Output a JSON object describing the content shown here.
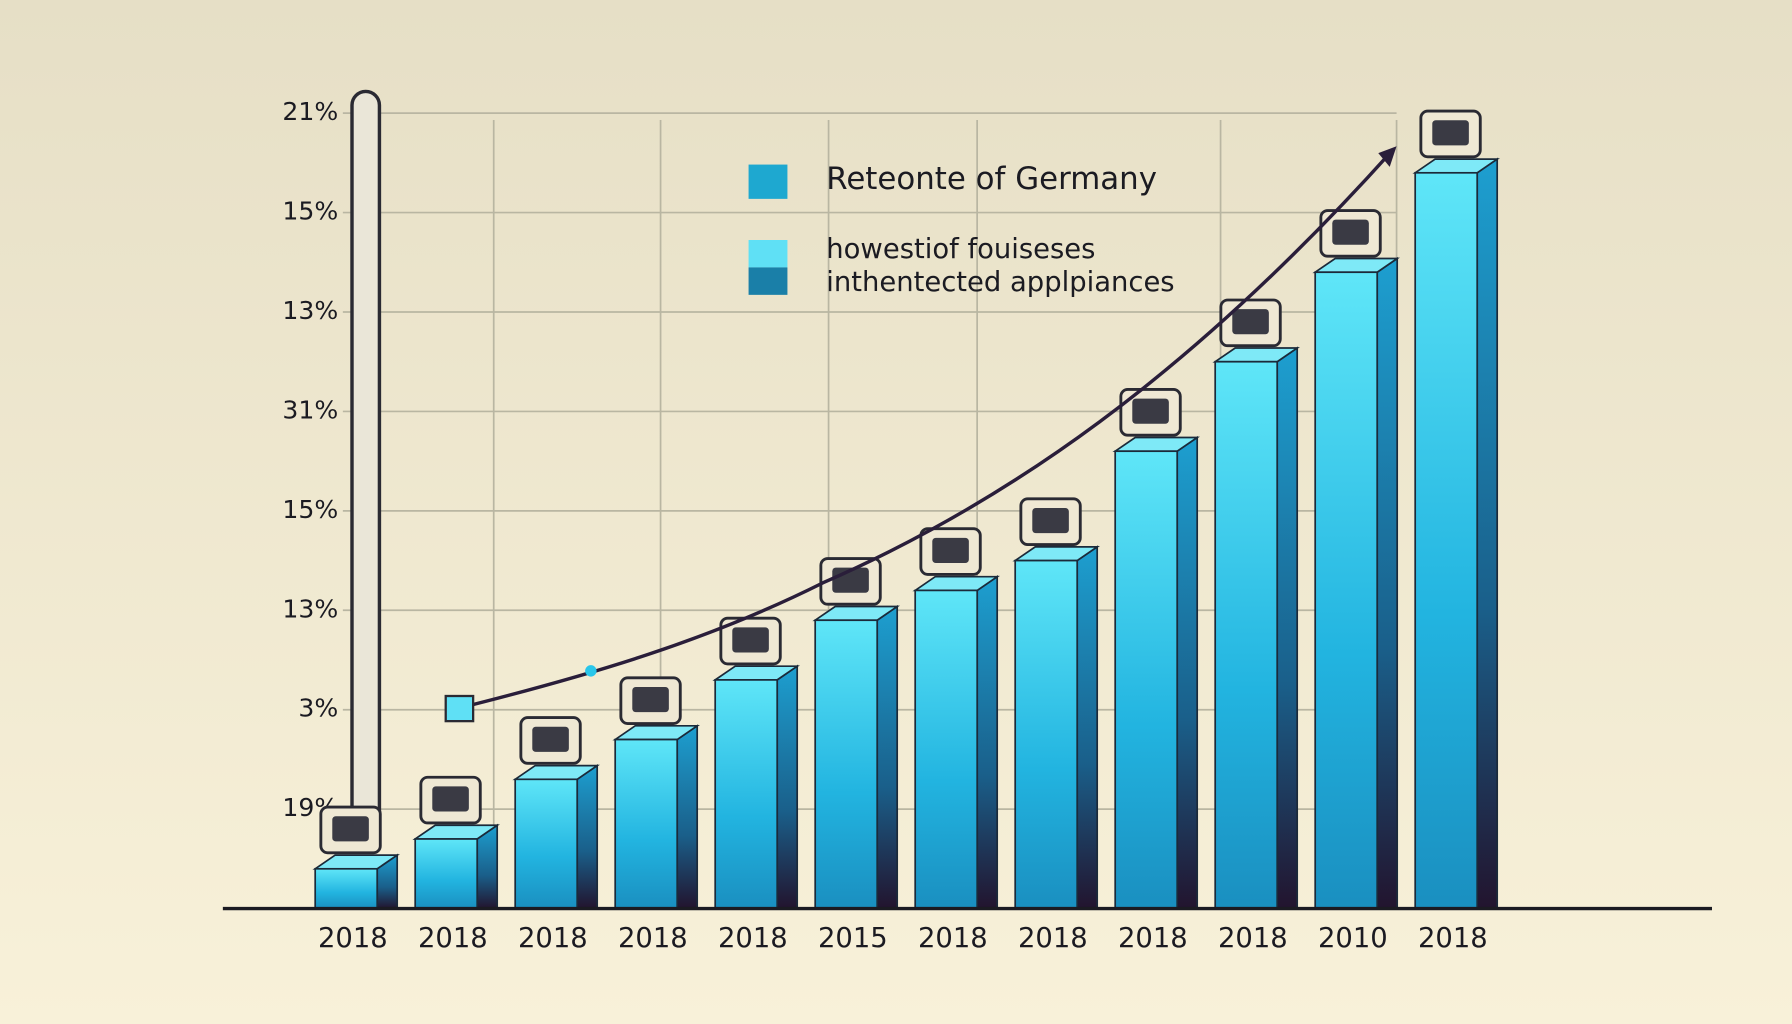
{
  "chart_data": {
    "type": "bar",
    "categories": [
      "2018",
      "2018",
      "2018",
      "2018",
      "2018",
      "2015",
      "2018",
      "2018",
      "2018",
      "2018",
      "2010",
      "2018"
    ],
    "values": [
      0.4,
      0.7,
      1.3,
      1.7,
      2.3,
      2.9,
      3.2,
      3.5,
      4.6,
      5.5,
      6.4,
      7.4
    ],
    "color": "#29c6ea",
    "ylim": [
      0,
      8
    ],
    "yticks": [
      {
        "value": 1,
        "label": "19%"
      },
      {
        "value": 2,
        "label": "3%"
      },
      {
        "value": 3,
        "label": "13%"
      },
      {
        "value": 4,
        "label": "15%"
      },
      {
        "value": 5,
        "label": "31%"
      },
      {
        "value": 6,
        "label": "13%"
      },
      {
        "value": 7,
        "label": "15%"
      },
      {
        "value": 8,
        "label": "21%"
      }
    ],
    "grid": true,
    "legend": [
      {
        "label": "Reteonte of Germany",
        "color": "#1ea8d0"
      },
      {
        "label": "howestiof fouiseses",
        "color": "#5fe0f5"
      },
      {
        "label": "inthentected applpiances",
        "color": "#1a7fa8"
      }
    ]
  }
}
